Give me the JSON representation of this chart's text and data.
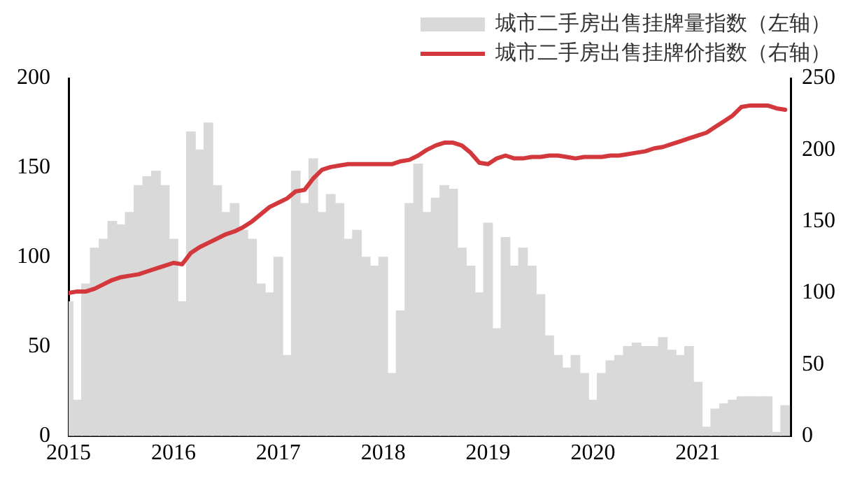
{
  "chart_data": {
    "type": "bar",
    "legend": "top right",
    "marker": "none",
    "grid": false,
    "x": [
      "2015-01",
      "2015-02",
      "2015-03",
      "2015-04",
      "2015-05",
      "2015-06",
      "2015-07",
      "2015-08",
      "2015-09",
      "2015-10",
      "2015-11",
      "2015-12",
      "2016-01",
      "2016-02",
      "2016-03",
      "2016-04",
      "2016-05",
      "2016-06",
      "2016-07",
      "2016-08",
      "2016-09",
      "2016-10",
      "2016-11",
      "2016-12",
      "2017-01",
      "2017-02",
      "2017-03",
      "2017-04",
      "2017-05",
      "2017-06",
      "2017-07",
      "2017-08",
      "2017-09",
      "2017-10",
      "2017-11",
      "2017-12",
      "2018-01",
      "2018-02",
      "2018-03",
      "2018-04",
      "2018-05",
      "2018-06",
      "2018-07",
      "2018-08",
      "2018-09",
      "2018-10",
      "2018-11",
      "2018-12",
      "2019-01",
      "2019-02",
      "2019-03",
      "2019-04",
      "2019-05",
      "2019-06",
      "2019-07",
      "2019-08",
      "2019-09",
      "2019-10",
      "2019-11",
      "2019-12",
      "2020-01",
      "2020-02",
      "2020-03",
      "2020-04",
      "2020-05",
      "2020-06",
      "2020-07",
      "2020-08",
      "2020-09",
      "2020-10",
      "2020-11",
      "2020-12",
      "2021-01",
      "2021-02",
      "2021-03",
      "2021-04",
      "2021-05",
      "2021-06",
      "2021-07",
      "2021-08",
      "2021-09",
      "2021-10",
      "2021-11"
    ],
    "series": [
      {
        "name": "城市二手房出售挂牌量指数（左轴）",
        "color": "#d9d9d9",
        "values": [
          75,
          20,
          85,
          105,
          110,
          120,
          118,
          125,
          140,
          145,
          148,
          140,
          110,
          75,
          170,
          160,
          175,
          140,
          125,
          130,
          115,
          110,
          85,
          80,
          100,
          45,
          148,
          130,
          155,
          125,
          135,
          130,
          110,
          115,
          100,
          95,
          100,
          35,
          70,
          130,
          152,
          125,
          133,
          140,
          138,
          105,
          95,
          80,
          119,
          60,
          111,
          95,
          105,
          95,
          79,
          56,
          45,
          38,
          45,
          35,
          20,
          35,
          42,
          45,
          50,
          52,
          50,
          50,
          55,
          48,
          45,
          50,
          30,
          5,
          15,
          18,
          20,
          22,
          22,
          22,
          22,
          2,
          17
        ]
      },
      {
        "name": "城市二手房出售挂牌价指数（右轴）",
        "type": "line",
        "axis": "y2",
        "color": "#d2383c",
        "values": [
          100,
          101,
          101,
          103,
          106,
          109,
          111,
          112,
          113,
          115,
          117,
          119,
          121,
          120,
          128,
          132,
          135,
          138,
          141,
          143,
          146,
          150,
          155,
          160,
          163,
          166,
          171,
          172,
          180,
          186,
          188,
          189,
          190,
          190,
          190,
          190,
          190,
          190,
          192,
          193,
          196,
          200,
          203,
          205,
          205,
          203,
          198,
          191,
          190,
          194,
          196,
          194,
          194,
          195,
          195,
          196,
          196,
          195,
          194,
          195,
          195,
          195,
          196,
          196,
          197,
          198,
          199,
          201,
          202,
          204,
          206,
          208,
          210,
          212,
          216,
          220,
          224,
          230,
          231,
          231,
          231,
          229,
          228
        ]
      }
    ],
    "xlim": [
      "2015-01-01",
      "2021-11-20"
    ],
    "xticks": [
      "2015",
      "2016",
      "2017",
      "2018",
      "2019",
      "2020",
      "2021"
    ],
    "ylim": [
      0,
      200
    ],
    "yticks": [
      0,
      50,
      100,
      150,
      200
    ],
    "y2lim": [
      0,
      250
    ],
    "y2ticks": [
      0,
      50,
      100,
      150,
      200,
      250
    ]
  }
}
